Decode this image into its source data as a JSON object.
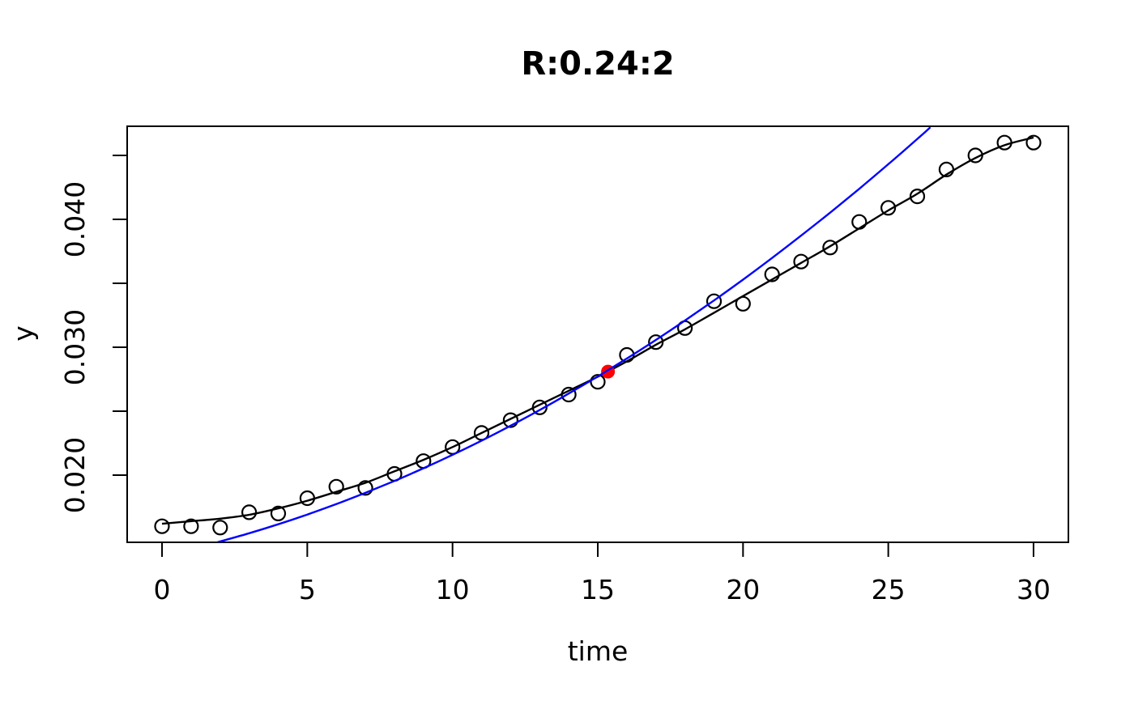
{
  "colors": {
    "foreground": "#000000",
    "background": "#ffffff",
    "fitted_curve": "#000000",
    "quadratic_curve": "#0000ff",
    "highlight_point": "#ff0000"
  },
  "chart_data": {
    "type": "scatter",
    "title": "R:0.24:2",
    "xlabel": "time",
    "ylabel": "y",
    "xlim": [
      -1.2,
      31.2
    ],
    "ylim": [
      0.01475,
      0.04728
    ],
    "grid": false,
    "legend": "none",
    "x_ticks": [
      0,
      5,
      10,
      15,
      20,
      25,
      30
    ],
    "y_ticks": [
      0.02,
      0.025,
      0.03,
      0.035,
      0.04,
      0.045
    ],
    "y_tick_labels": [
      0.02,
      0.03,
      0.04
    ],
    "series": [
      {
        "name": "observations",
        "type": "scatter",
        "marker": "open-circle",
        "color": "#000000",
        "x": [
          0,
          1,
          2,
          3,
          4,
          5,
          6,
          7,
          8,
          9,
          10,
          11,
          12,
          13,
          14,
          15,
          16,
          17,
          18,
          19,
          20,
          21,
          22,
          23,
          24,
          25,
          26,
          27,
          28,
          29,
          30
        ],
        "y": [
          0.016,
          0.016,
          0.0159,
          0.0171,
          0.017,
          0.0182,
          0.0191,
          0.019,
          0.0201,
          0.0211,
          0.0222,
          0.0233,
          0.0243,
          0.0253,
          0.0263,
          0.0273,
          0.0294,
          0.0304,
          0.0315,
          0.0336,
          0.0334,
          0.0357,
          0.0367,
          0.0378,
          0.0398,
          0.0409,
          0.0418,
          0.0439,
          0.045,
          0.046,
          0.046
        ]
      },
      {
        "name": "fitted-curve",
        "type": "line",
        "color": "#000000",
        "x": [
          0,
          1,
          2,
          3,
          4,
          5,
          6,
          7,
          8,
          9,
          10,
          11,
          12,
          13,
          14,
          15,
          16,
          17,
          18,
          19,
          20,
          21,
          22,
          23,
          24,
          25,
          26,
          27,
          28,
          29,
          30
        ],
        "y": [
          0.0162,
          0.0164,
          0.0166,
          0.0169,
          0.0174,
          0.018,
          0.0187,
          0.0194,
          0.0203,
          0.0212,
          0.0222,
          0.0233,
          0.0244,
          0.0255,
          0.0266,
          0.0277,
          0.0289,
          0.0302,
          0.0314,
          0.0327,
          0.034,
          0.0353,
          0.0366,
          0.0379,
          0.0393,
          0.0407,
          0.042,
          0.0435,
          0.0448,
          0.0458,
          0.0464
        ]
      },
      {
        "name": "highlight-point",
        "type": "scatter",
        "marker": "filled-circle",
        "color": "#ff0000",
        "x": [
          15.35
        ],
        "y": [
          0.0281
        ]
      },
      {
        "name": "local-quadratic-curve",
        "type": "line",
        "color": "#0000ff",
        "x": [
          1.9,
          3,
          4,
          5,
          6,
          7,
          8,
          9,
          10,
          11,
          12,
          13,
          14,
          15,
          16,
          17,
          18,
          19,
          20,
          21,
          22,
          23,
          24,
          25,
          26,
          26.45
        ],
        "y": [
          0.01475,
          0.01546,
          0.01616,
          0.01692,
          0.01774,
          0.01862,
          0.01955,
          0.02054,
          0.02159,
          0.0227,
          0.02387,
          0.02509,
          0.02638,
          0.02772,
          0.02912,
          0.03057,
          0.03209,
          0.03366,
          0.03529,
          0.03698,
          0.03873,
          0.04053,
          0.04239,
          0.04431,
          0.04629,
          0.0472
        ]
      }
    ]
  }
}
